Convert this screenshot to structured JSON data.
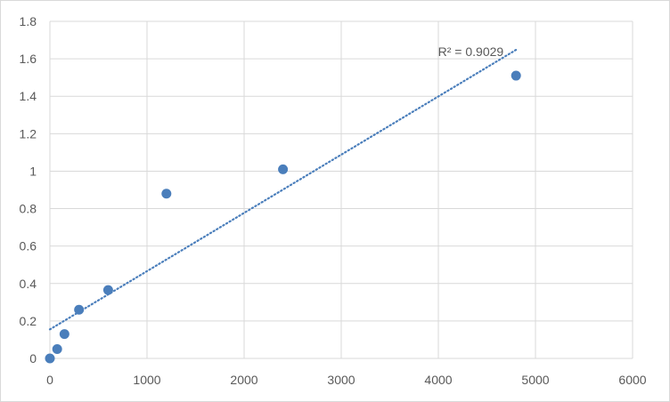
{
  "chart_data": {
    "type": "scatter",
    "title": "",
    "xlabel": "",
    "ylabel": "",
    "xlim": [
      0,
      6000
    ],
    "ylim": [
      0,
      1.8
    ],
    "x_ticks": [
      0,
      1000,
      2000,
      3000,
      4000,
      5000,
      6000
    ],
    "y_ticks": [
      0,
      0.2,
      0.4,
      0.6,
      0.8,
      1,
      1.2,
      1.4,
      1.6,
      1.8
    ],
    "x_tick_labels": [
      "0",
      "1000",
      "2000",
      "3000",
      "4000",
      "5000",
      "6000"
    ],
    "y_tick_labels": [
      "0",
      "0.2",
      "0.4",
      "0.6",
      "0.8",
      "1",
      "1.2",
      "1.4",
      "1.6",
      "1.8"
    ],
    "grid": true,
    "legend": "none",
    "series": [
      {
        "x": [
          0,
          75,
          150,
          300,
          600,
          1200,
          2400,
          4800
        ],
        "y": [
          0,
          0.05,
          0.13,
          0.26,
          0.365,
          0.88,
          1.01,
          1.51
        ],
        "color": "#4a7ebb"
      }
    ],
    "trendline": {
      "type": "linear",
      "style": "dotted",
      "color": "#4a7ebb",
      "x_range": [
        0,
        4800
      ],
      "slope": 0.000311,
      "intercept": 0.155,
      "annotation": "R² = 0.9029"
    }
  }
}
